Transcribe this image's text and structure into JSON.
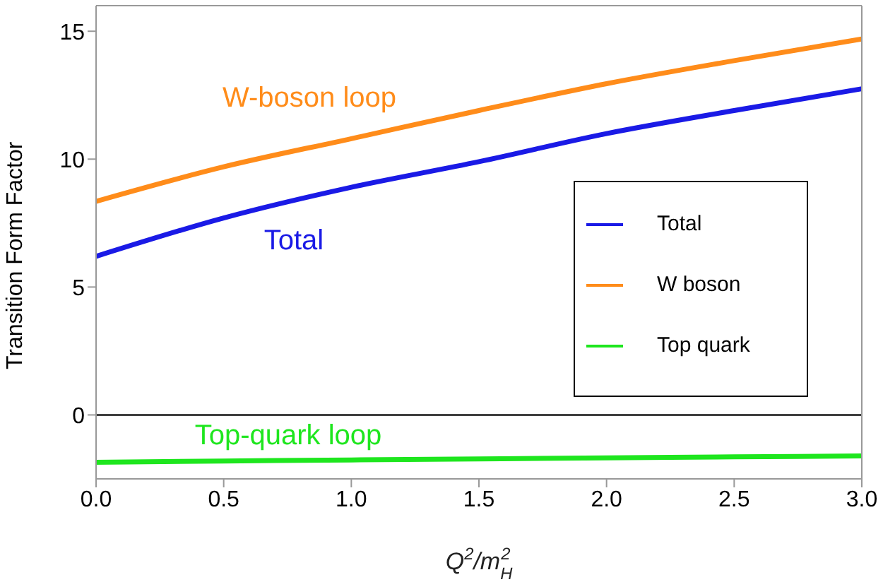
{
  "chart_data": {
    "type": "line",
    "xlabel": "Q$^{2}$/m$_{H}$$^{2}$",
    "ylabel": "Transition Form Factor",
    "x": [
      0,
      0.5,
      1,
      1.5,
      2,
      2.5,
      3
    ],
    "series": [
      {
        "name": "Total",
        "color": "#1a1ae6",
        "values": [
          6.2,
          7.7,
          8.9,
          9.9,
          11.0,
          11.9,
          12.75
        ]
      },
      {
        "name": "W boson",
        "color": "#ff8c1a",
        "values": [
          8.35,
          9.7,
          10.8,
          11.9,
          12.95,
          13.85,
          14.7
        ]
      },
      {
        "name": "Top quark",
        "color": "#1ee61e",
        "values": [
          -1.85,
          -1.8,
          -1.76,
          -1.72,
          -1.68,
          -1.64,
          -1.6
        ]
      }
    ],
    "annotations": [
      "Total",
      "W-boson loop",
      "Top-quark loop"
    ],
    "ref_lines": [
      {
        "axis": "y",
        "value": 0,
        "color": "#404040"
      }
    ],
    "xlim": [
      0,
      3
    ],
    "ylim": [
      -2.5,
      16
    ],
    "xticks": [
      {
        "value": 0,
        "label": "0.0"
      },
      {
        "value": 0.5,
        "label": "0.5"
      },
      {
        "value": 1,
        "label": "1.0"
      },
      {
        "value": 1.5,
        "label": "1.5"
      },
      {
        "value": 2,
        "label": "2.0"
      },
      {
        "value": 2.5,
        "label": "2.5"
      },
      {
        "value": 3,
        "label": "3.0"
      }
    ],
    "yticks": [
      0,
      5,
      10,
      15
    ],
    "legend": "right",
    "grid": false,
    "marker": "none",
    "line_style": "solid"
  }
}
